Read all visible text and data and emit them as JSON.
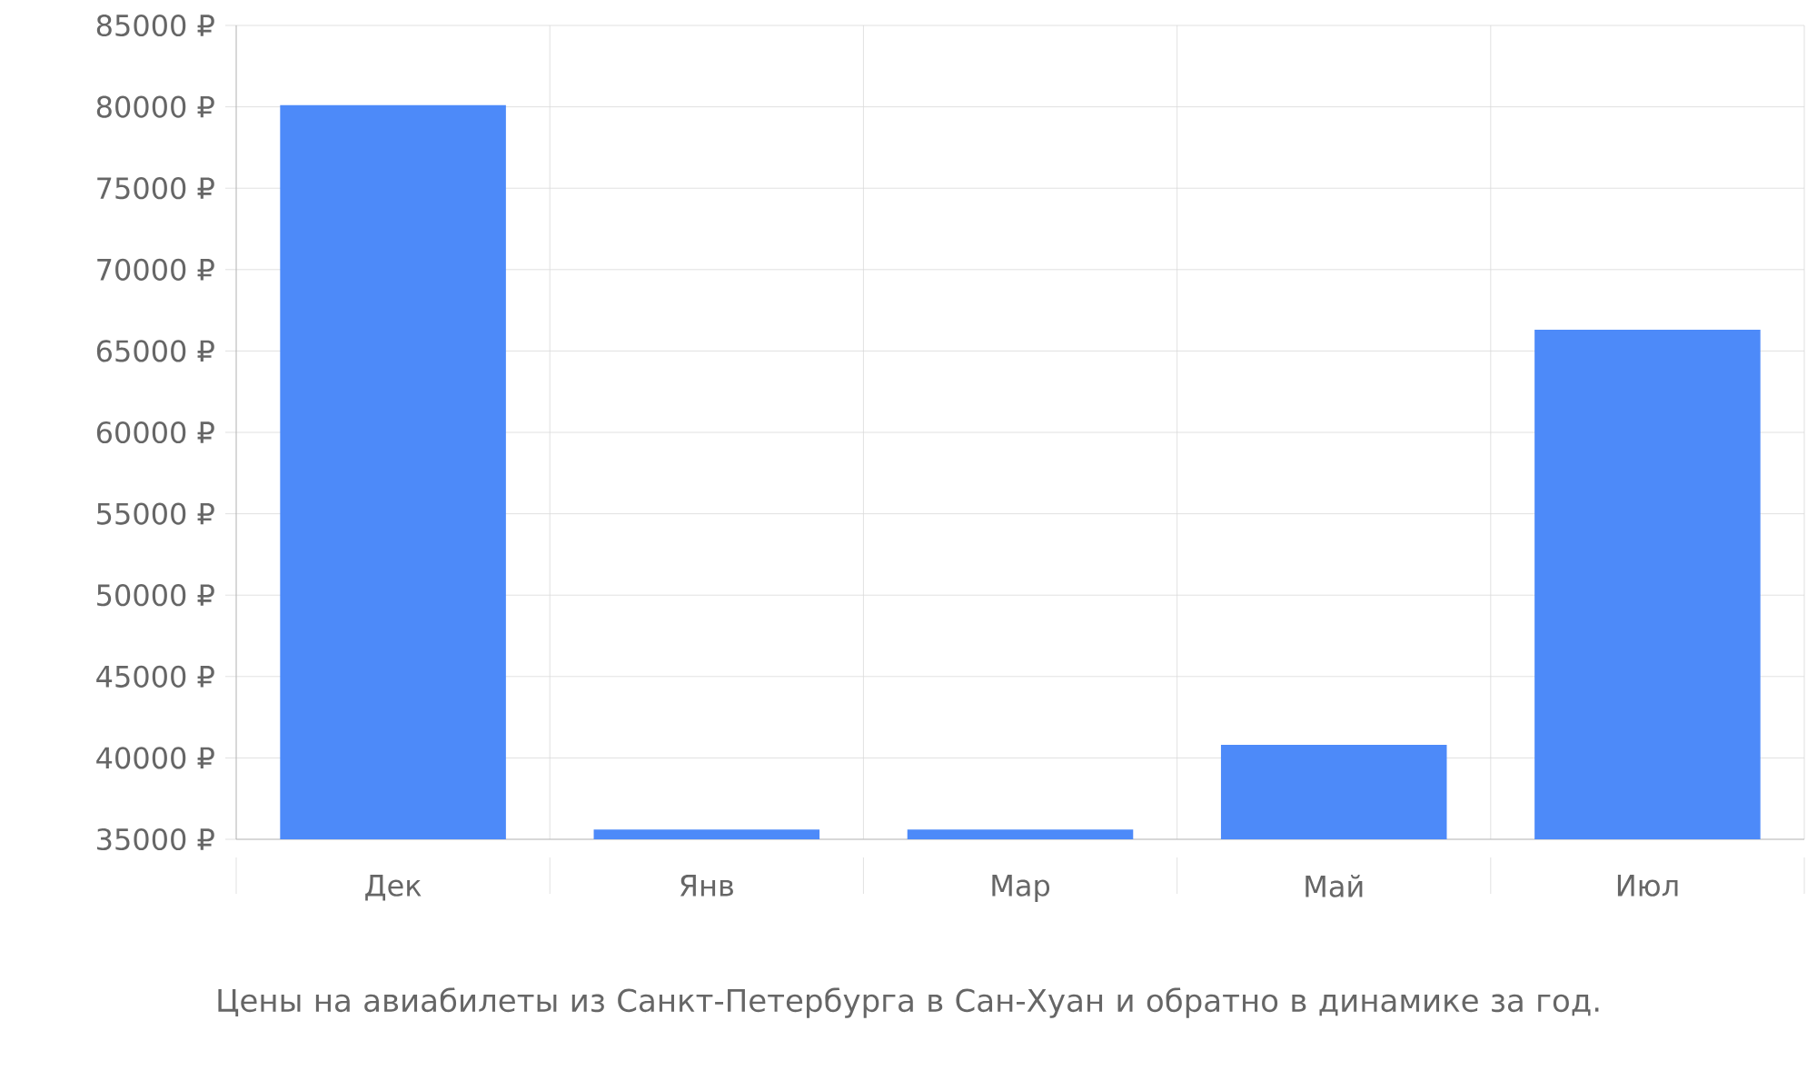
{
  "chart_data": {
    "type": "bar",
    "title": "Цены на авиабилеты из Санкт-Петербурга в Сан-Хуан и обратно в динамике за год.",
    "categories": [
      "Дек",
      "Янв",
      "Мар",
      "Май",
      "Июл"
    ],
    "values": [
      80100,
      35600,
      35600,
      40800,
      66300
    ],
    "color": "#4d8af9",
    "ylim": [
      35000,
      85000
    ],
    "yticks": [
      {
        "value": 35000,
        "label": "35000 ₽"
      },
      {
        "value": 40000,
        "label": "40000 ₽"
      },
      {
        "value": 45000,
        "label": "45000 ₽"
      },
      {
        "value": 50000,
        "label": "50000 ₽"
      },
      {
        "value": 55000,
        "label": "55000 ₽"
      },
      {
        "value": 60000,
        "label": "60000 ₽"
      },
      {
        "value": 65000,
        "label": "65000 ₽"
      },
      {
        "value": 70000,
        "label": "70000 ₽"
      },
      {
        "value": 75000,
        "label": "75000 ₽"
      },
      {
        "value": 80000,
        "label": "80000 ₽"
      },
      {
        "value": 85000,
        "label": "85000 ₽"
      }
    ],
    "grid": true
  }
}
